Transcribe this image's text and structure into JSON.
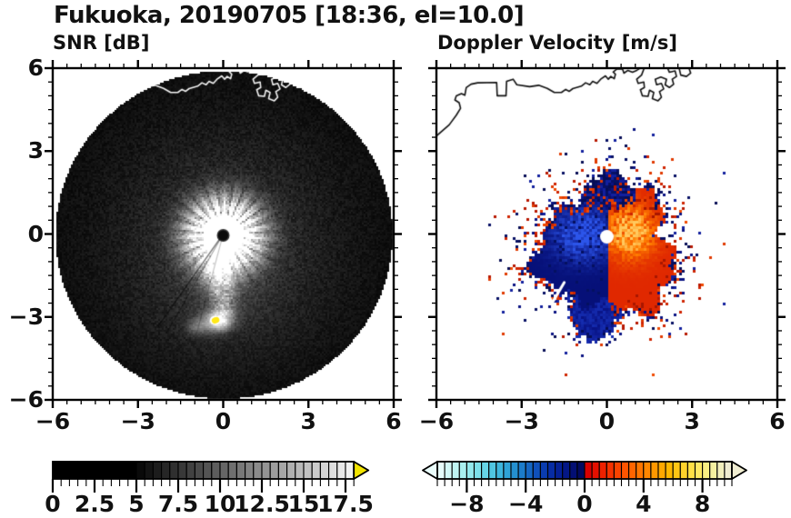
{
  "title": "Fukuoka, 20190705 [18:36, el=10.0]",
  "panels": {
    "left": {
      "label": "SNR [dB]",
      "x_tick_labels": [
        "−6",
        "−3",
        "0",
        "3",
        "6"
      ],
      "x_tick_values": [
        -6,
        -3,
        0,
        3,
        6
      ],
      "y_tick_labels": [
        "6",
        "3",
        "0",
        "−3",
        "−6"
      ],
      "y_tick_values": [
        6,
        3,
        0,
        -3,
        -6
      ]
    },
    "right": {
      "label": "Doppler Velocity [m/s]",
      "x_tick_labels": [
        "−6",
        "−3",
        "0",
        "3",
        "6"
      ],
      "x_tick_values": [
        -6,
        -3,
        0,
        3,
        6
      ],
      "y_tick_labels": [],
      "y_tick_values": []
    }
  },
  "colorbars": {
    "snr": {
      "tick_labels": [
        "0",
        "2.5",
        "5",
        "7.5",
        "10",
        "12.5",
        "15",
        "17.5"
      ],
      "tick_values": [
        0,
        2.5,
        5,
        7.5,
        10,
        12.5,
        15,
        17.5
      ],
      "range": [
        0,
        18
      ],
      "segment_step": 0.5,
      "black_until": 5,
      "gray_start": "#0a0a0a",
      "gray_end": "#f0f0f0",
      "over_arrow_color": "#f2e400"
    },
    "vel": {
      "tick_labels": [
        "−8",
        "−4",
        "0",
        "4",
        "8"
      ],
      "tick_values": [
        -8,
        -4,
        0,
        4,
        8
      ],
      "range": [
        -10,
        10
      ],
      "segment_step": 0.5,
      "neg_colors": [
        "#e6fdfb",
        "#d2f9f7",
        "#bef4f2",
        "#a9efef",
        "#93e8ec",
        "#7cdfe9",
        "#66d4e6",
        "#50c6e2",
        "#3eb5dc",
        "#2fa2d6",
        "#2490d0",
        "#1c7cca",
        "#1566c2",
        "#0f50ba",
        "#0a3cb0",
        "#072ca4",
        "#052096",
        "#041786",
        "#030f74",
        "#020a60"
      ],
      "pos_colors": [
        "#d90000",
        "#e41000",
        "#ee2100",
        "#f53200",
        "#fa4300",
        "#fe5400",
        "#ff6500",
        "#ff7600",
        "#ff8700",
        "#ff9800",
        "#ffa800",
        "#ffb800",
        "#ffc614",
        "#ffd32b",
        "#ffdf45",
        "#fde862",
        "#f9ee82",
        "#f5f0a0",
        "#f1eebb",
        "#eeebd0"
      ],
      "under_arrow_color": "#eafdfb",
      "over_arrow_color": "#f1eed2"
    }
  },
  "chart_data": [
    {
      "type": "heatmap",
      "title": "SNR [dB]",
      "xlim": [
        -6,
        6
      ],
      "ylim": [
        -6,
        6
      ],
      "x_ticks": [
        -6,
        -3,
        0,
        3,
        6
      ],
      "y_ticks": [
        -6,
        -3,
        0,
        3,
        6
      ],
      "minor_tick_step": 0.5,
      "grid": false,
      "colorbar": {
        "position": "bottom",
        "min": 0,
        "max": 18,
        "ticks": [
          0,
          2.5,
          5,
          7.5,
          10,
          12.5,
          15,
          17.5
        ],
        "colormap": "black-to-white grayscale, yellow over-range arrow"
      },
      "features": {
        "scan_disk": {
          "center": [
            0,
            0
          ],
          "radius": 5.93,
          "background_snr_dB": "0-2 (noise speckle)"
        },
        "radar_site_dot": {
          "center": [
            0,
            -0.05
          ],
          "radius": 0.2,
          "value": "blanked (black)"
        },
        "bright_core": {
          "center": [
            0,
            0
          ],
          "radius": 1.4,
          "snr_dB": "15-18, white with radial streaks"
        },
        "plume_echo": {
          "from": [
            0,
            0
          ],
          "to": [
            -0.2,
            -3.3
          ],
          "width": 0.8,
          "snr_dB": "6-12"
        },
        "strong_echo": {
          "center": [
            -0.27,
            -3.12
          ],
          "snr_dB": ">18 (saturated yellow)"
        },
        "shadow_rays": [
          [
            [
              0,
              0
            ],
            [
              -2.3,
              -3.35
            ]
          ],
          [
            [
              0,
              0
            ],
            [
              -2.0,
              -3.6
            ]
          ]
        ],
        "coastline": "white contour across top of disk (Hakata Bay)"
      }
    },
    {
      "type": "heatmap",
      "title": "Doppler Velocity [m/s]",
      "xlim": [
        -6,
        6
      ],
      "ylim": [
        -6,
        6
      ],
      "x_ticks": [
        -6,
        -3,
        0,
        3,
        6
      ],
      "y_ticks": [
        -6,
        -3,
        0,
        3,
        6
      ],
      "minor_tick_step": 0.5,
      "grid": false,
      "colorbar": {
        "position": "bottom",
        "min": -10,
        "max": 10,
        "ticks": [
          -8,
          -4,
          0,
          4,
          8
        ],
        "colormap": "pale-cyan to navy (negative), red to cream-yellow (positive), arrows both ends"
      },
      "features": {
        "echo_blob": {
          "center": [
            0,
            -0.45
          ],
          "radius": 2.3,
          "fringe": "speckled navy/red to r=3.3"
        },
        "west_half": {
          "sign": "negative (approaching)",
          "velocity_ms": "-2 to -6, royal blue core near (-0.9,0), navy edges"
        },
        "east_half": {
          "sign": "positive (receding)",
          "velocity_ms": "+2 to +8, yellow-orange max near (0.8,0.1)"
        },
        "zero_isodop": "sharp vertical boundary south of radar",
        "blue_tail": {
          "from": [
            -1.1,
            -2.2
          ],
          "to": [
            0.05,
            -3.6
          ]
        },
        "radar_site_dot": {
          "center": [
            0,
            -0.1
          ],
          "radius": 0.24,
          "value": "blanked (white)"
        },
        "white_slash_mark": [
          [
            -1.9,
            -2.45
          ],
          [
            -1.5,
            -1.75
          ]
        ],
        "coastline": "black contour across top (Hakata Bay)"
      }
    }
  ],
  "coastline": {
    "main": [
      [
        -6.0,
        3.55
      ],
      [
        -5.55,
        3.95
      ],
      [
        -5.3,
        4.3
      ],
      [
        -5.15,
        4.55
      ],
      [
        -5.2,
        4.75
      ],
      [
        -5.35,
        4.85
      ],
      [
        -5.3,
        5.0
      ],
      [
        -5.12,
        5.08
      ],
      [
        -5.0,
        5.02
      ],
      [
        -4.95,
        5.3
      ],
      [
        -4.78,
        5.42
      ],
      [
        -4.55,
        5.47
      ],
      [
        -3.88,
        5.48
      ],
      [
        -3.86,
        5.0
      ],
      [
        -3.55,
        5.0
      ],
      [
        -3.53,
        5.52
      ],
      [
        -3.3,
        5.6
      ],
      [
        -3.17,
        5.4
      ],
      [
        -2.72,
        5.33
      ],
      [
        -2.4,
        5.38
      ],
      [
        -2.1,
        5.27
      ],
      [
        -1.85,
        5.12
      ],
      [
        -1.6,
        5.12
      ],
      [
        -1.45,
        5.23
      ],
      [
        -1.33,
        5.16
      ],
      [
        -1.2,
        5.26
      ],
      [
        -0.9,
        5.35
      ],
      [
        -0.75,
        5.47
      ],
      [
        -0.6,
        5.4
      ],
      [
        -0.5,
        5.52
      ],
      [
        -0.35,
        5.45
      ],
      [
        -0.22,
        5.6
      ],
      [
        -0.05,
        5.72
      ],
      [
        0.05,
        5.6
      ],
      [
        0.14,
        5.7
      ],
      [
        0.26,
        5.62
      ],
      [
        0.3,
        5.78
      ],
      [
        0.22,
        5.86
      ],
      [
        0.35,
        5.97
      ],
      [
        0.55,
        5.97
      ],
      [
        0.6,
        5.82
      ],
      [
        0.74,
        5.92
      ],
      [
        0.9,
        5.85
      ],
      [
        1.05,
        5.92
      ],
      [
        1.13,
        5.97
      ]
    ],
    "port": [
      [
        1.3,
        5.97
      ],
      [
        1.22,
        5.75
      ],
      [
        1.05,
        5.6
      ],
      [
        1.1,
        5.45
      ],
      [
        1.3,
        5.5
      ],
      [
        1.32,
        5.3
      ],
      [
        1.18,
        5.22
      ],
      [
        1.25,
        5.0
      ],
      [
        1.45,
        4.98
      ],
      [
        1.5,
        5.2
      ],
      [
        1.65,
        5.12
      ],
      [
        1.6,
        4.9
      ],
      [
        1.8,
        4.82
      ],
      [
        1.92,
        4.95
      ],
      [
        1.85,
        5.15
      ],
      [
        2.0,
        5.25
      ],
      [
        1.92,
        5.45
      ],
      [
        1.75,
        5.4
      ],
      [
        1.7,
        5.6
      ],
      [
        1.9,
        5.68
      ],
      [
        2.1,
        5.6
      ],
      [
        2.05,
        5.4
      ],
      [
        2.2,
        5.3
      ],
      [
        2.35,
        5.42
      ],
      [
        2.3,
        5.6
      ],
      [
        2.45,
        5.7
      ],
      [
        2.4,
        5.9
      ],
      [
        2.2,
        5.85
      ],
      [
        2.15,
        5.97
      ]
    ],
    "port2": [
      [
        2.55,
        5.97
      ],
      [
        2.6,
        5.75
      ],
      [
        2.8,
        5.7
      ],
      [
        2.95,
        5.82
      ],
      [
        2.9,
        5.97
      ]
    ]
  }
}
